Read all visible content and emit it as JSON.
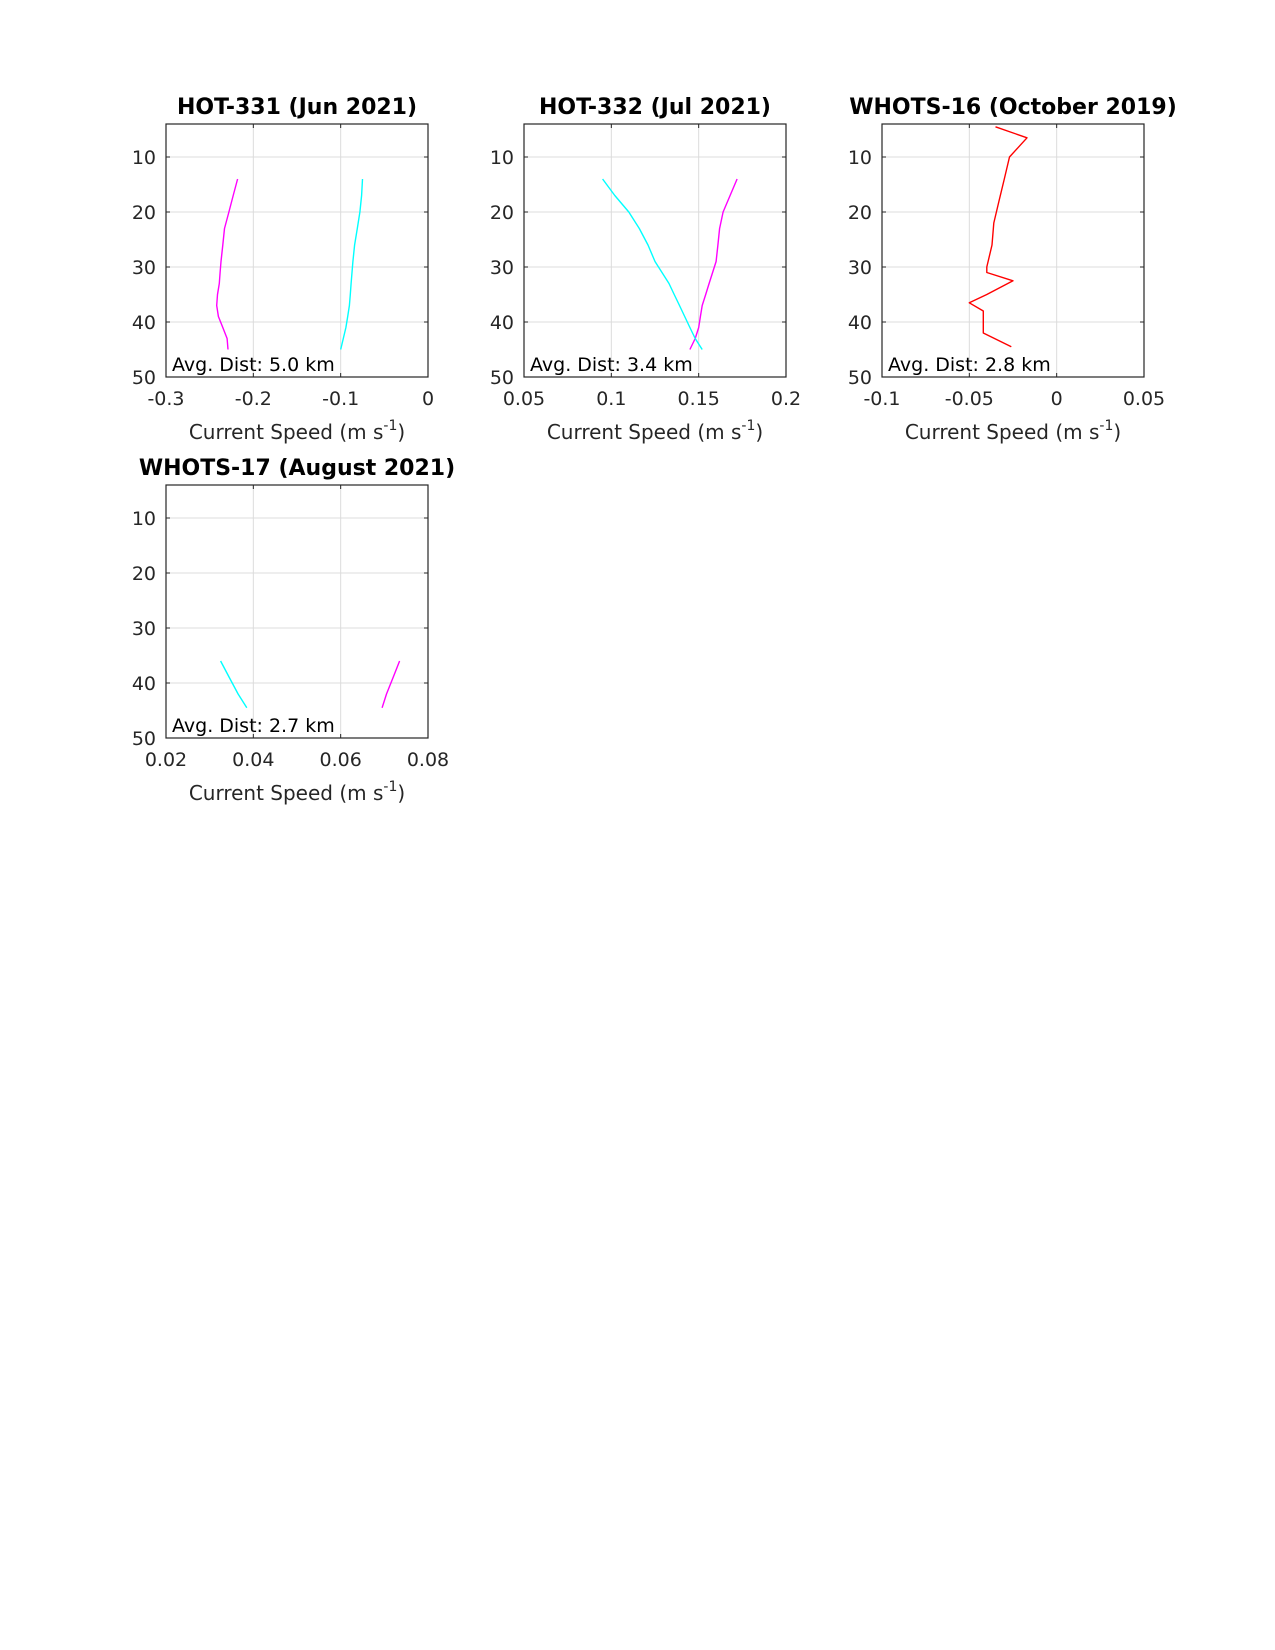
{
  "chart_data": [
    {
      "type": "line",
      "title": "HOT-331 (Jun 2021)",
      "xlabel": "Current Speed (m s",
      "xlabel_sup": "-1",
      "xlabel_end": ")",
      "ylabel": "",
      "xlim": [
        -0.3,
        0
      ],
      "ylim": [
        50,
        4
      ],
      "y_reversed": true,
      "xticks": [
        -0.3,
        -0.2,
        -0.1,
        0
      ],
      "xtick_labels": [
        "-0.3",
        "-0.2",
        "-0.1",
        "0"
      ],
      "yticks": [
        10,
        20,
        30,
        40,
        50
      ],
      "ytick_labels": [
        "10",
        "20",
        "30",
        "40",
        "50"
      ],
      "grid": true,
      "annotation": "Avg. Dist: 5.0 km",
      "series": [
        {
          "color": "#ff00ff",
          "x": [
            -0.218,
            -0.223,
            -0.228,
            -0.233,
            -0.235,
            -0.237,
            -0.238,
            -0.239,
            -0.241,
            -0.242,
            -0.24,
            -0.235,
            -0.23,
            -0.229
          ],
          "y": [
            14,
            17,
            20,
            23,
            26,
            29,
            31,
            33,
            35,
            37,
            39,
            41,
            43,
            45
          ]
        },
        {
          "color": "#00ffff",
          "x": [
            -0.075,
            -0.076,
            -0.078,
            -0.081,
            -0.084,
            -0.086,
            -0.087,
            -0.088,
            -0.089,
            -0.09,
            -0.092,
            -0.094,
            -0.097,
            -0.1
          ],
          "y": [
            14,
            17,
            20,
            23,
            26,
            29,
            31,
            33,
            35,
            37,
            39,
            41,
            43,
            45
          ]
        }
      ]
    },
    {
      "type": "line",
      "title": "HOT-332 (Jul 2021)",
      "xlabel": "Current Speed (m s",
      "xlabel_sup": "-1",
      "xlabel_end": ")",
      "ylabel": "",
      "xlim": [
        0.05,
        0.2
      ],
      "ylim": [
        50,
        4
      ],
      "y_reversed": true,
      "xticks": [
        0.05,
        0.1,
        0.15,
        0.2
      ],
      "xtick_labels": [
        "0.05",
        "0.1",
        "0.15",
        "0.2"
      ],
      "yticks": [
        10,
        20,
        30,
        40,
        50
      ],
      "ytick_labels": [
        "10",
        "20",
        "30",
        "40",
        "50"
      ],
      "grid": true,
      "annotation": "Avg. Dist: 3.4 km",
      "series": [
        {
          "color": "#ff00ff",
          "x": [
            0.172,
            0.168,
            0.164,
            0.162,
            0.161,
            0.16,
            0.158,
            0.156,
            0.154,
            0.152,
            0.151,
            0.15,
            0.148,
            0.145
          ],
          "y": [
            14,
            17,
            20,
            23,
            26,
            29,
            31,
            33,
            35,
            37,
            39,
            41,
            43,
            45
          ]
        },
        {
          "color": "#00ffff",
          "x": [
            0.095,
            0.102,
            0.11,
            0.116,
            0.121,
            0.125,
            0.129,
            0.133,
            0.136,
            0.139,
            0.142,
            0.145,
            0.148,
            0.152
          ],
          "y": [
            14,
            17,
            20,
            23,
            26,
            29,
            31,
            33,
            35,
            37,
            39,
            41,
            43,
            45
          ]
        }
      ]
    },
    {
      "type": "line",
      "title": "WHOTS-16 (October 2019)",
      "xlabel": "Current Speed (m s",
      "xlabel_sup": "-1",
      "xlabel_end": ")",
      "ylabel": "",
      "xlim": [
        -0.1,
        0.05
      ],
      "ylim": [
        50,
        4
      ],
      "y_reversed": true,
      "xticks": [
        -0.1,
        -0.05,
        0,
        0.05
      ],
      "xtick_labels": [
        "-0.1",
        "-0.05",
        "0",
        "0.05"
      ],
      "yticks": [
        10,
        20,
        30,
        40,
        50
      ],
      "ytick_labels": [
        "10",
        "20",
        "30",
        "40",
        "50"
      ],
      "grid": true,
      "annotation": "Avg. Dist: 2.8 km",
      "series": [
        {
          "color": "#ff0000",
          "x": [
            -0.035,
            -0.017,
            -0.027,
            -0.03,
            -0.033,
            -0.036,
            -0.037,
            -0.04,
            -0.04,
            -0.025,
            -0.04,
            -0.05,
            -0.042,
            -0.042,
            -0.026
          ],
          "y": [
            4.5,
            6.5,
            10,
            14,
            18,
            22,
            26,
            30,
            31,
            32.5,
            35,
            36.5,
            38,
            42,
            44.5
          ]
        }
      ]
    },
    {
      "type": "line",
      "title": "WHOTS-17 (August 2021)",
      "xlabel": "Current Speed (m s",
      "xlabel_sup": "-1",
      "xlabel_end": ")",
      "ylabel": "",
      "xlim": [
        0.02,
        0.08
      ],
      "ylim": [
        50,
        4
      ],
      "y_reversed": true,
      "xticks": [
        0.02,
        0.04,
        0.06,
        0.08
      ],
      "xtick_labels": [
        "0.02",
        "0.04",
        "0.06",
        "0.08"
      ],
      "yticks": [
        10,
        20,
        30,
        40,
        50
      ],
      "ytick_labels": [
        "10",
        "20",
        "30",
        "40",
        "50"
      ],
      "grid": true,
      "annotation": "Avg. Dist: 2.7 km",
      "series": [
        {
          "color": "#ff00ff",
          "x": [
            0.0735,
            0.072,
            0.0705,
            0.0695
          ],
          "y": [
            36,
            39,
            42,
            44.5
          ]
        },
        {
          "color": "#00ffff",
          "x": [
            0.0325,
            0.0345,
            0.0365,
            0.0385
          ],
          "y": [
            36,
            39,
            42,
            44.5
          ]
        }
      ]
    }
  ]
}
